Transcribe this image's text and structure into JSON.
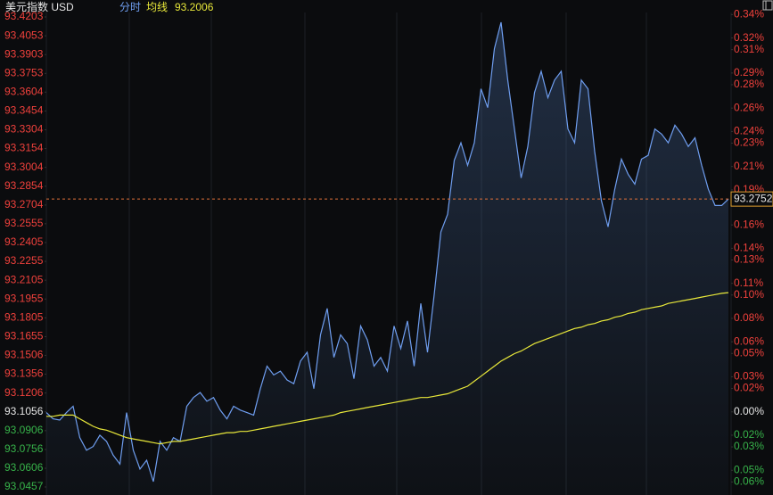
{
  "chart_data": {
    "type": "line",
    "title": "美元指数 USD",
    "ylim": [
      93.0457,
      93.4203
    ],
    "yticks": [
      93.4203,
      93.4053,
      93.3903,
      93.3753,
      93.3604,
      93.3454,
      93.3304,
      93.3154,
      93.3004,
      93.2854,
      93.2704,
      93.2555,
      93.2405,
      93.2255,
      93.2105,
      93.1955,
      93.1805,
      93.1655,
      93.1506,
      93.1356,
      93.1206,
      93.1056,
      93.0906,
      93.0756,
      93.0606,
      93.0457
    ],
    "y2lim": [
      -0.0643,
      0.338
    ],
    "y2ticks": [
      {
        "value": 0.34,
        "label": "0.34%"
      },
      {
        "value": 0.32,
        "label": "0.32%"
      },
      {
        "value": 0.31,
        "label": "0.31%"
      },
      {
        "value": 0.29,
        "label": "0.29%"
      },
      {
        "value": 0.28,
        "label": "0.28%"
      },
      {
        "value": 0.26,
        "label": "0.26%"
      },
      {
        "value": 0.24,
        "label": "0.24%"
      },
      {
        "value": 0.23,
        "label": "0.23%"
      },
      {
        "value": 0.21,
        "label": "0.21%"
      },
      {
        "value": 0.19,
        "label": "0.19%"
      },
      {
        "value": 0.18,
        "label": "0.18%"
      },
      {
        "value": 0.16,
        "label": "0.16%"
      },
      {
        "value": 0.14,
        "label": "0.14%"
      },
      {
        "value": 0.13,
        "label": "0.13%"
      },
      {
        "value": 0.11,
        "label": "0.11%"
      },
      {
        "value": 0.1,
        "label": "0.10%"
      },
      {
        "value": 0.08,
        "label": "0.08%"
      },
      {
        "value": 0.06,
        "label": "0.06%"
      },
      {
        "value": 0.05,
        "label": "0.05%"
      },
      {
        "value": 0.03,
        "label": "0.03%"
      },
      {
        "value": 0.02,
        "label": "0.02%"
      },
      {
        "value": 0,
        "label": "0.00%"
      },
      {
        "value": -0.02,
        "label": "0.02%"
      },
      {
        "value": -0.03,
        "label": "0.03%"
      },
      {
        "value": -0.05,
        "label": "0.05%"
      },
      {
        "value": -0.06,
        "label": "0.06%"
      }
    ],
    "up_color": "#f0413c",
    "down_color": "#37b34a",
    "flat_color": "#e6e6e6",
    "series": [
      {
        "name": "分时",
        "color": "#6f9ef0",
        "values": [
          93.105,
          93.1,
          93.099,
          93.105,
          93.11,
          93.085,
          93.075,
          93.078,
          93.087,
          93.082,
          93.071,
          93.064,
          93.105,
          93.075,
          93.06,
          93.067,
          93.05,
          93.082,
          93.075,
          93.085,
          93.082,
          93.11,
          93.117,
          93.121,
          93.114,
          93.117,
          93.107,
          93.1,
          93.11,
          93.107,
          93.105,
          93.103,
          93.124,
          93.142,
          93.135,
          93.138,
          93.131,
          93.128,
          93.146,
          93.153,
          93.124,
          93.167,
          93.188,
          93.149,
          93.167,
          93.16,
          93.132,
          93.174,
          93.163,
          93.142,
          93.149,
          93.138,
          93.174,
          93.156,
          93.178,
          93.142,
          93.192,
          93.153,
          93.199,
          93.249,
          93.263,
          93.306,
          93.32,
          93.302,
          93.32,
          93.363,
          93.348,
          93.395,
          93.416,
          93.37,
          93.331,
          93.292,
          93.317,
          93.36,
          93.377,
          93.356,
          93.37,
          93.377,
          93.331,
          93.32,
          93.37,
          93.363,
          93.313,
          93.274,
          93.253,
          93.283,
          93.307,
          93.295,
          93.287,
          93.307,
          93.31,
          93.331,
          93.327,
          93.32,
          93.334,
          93.327,
          93.317,
          93.324,
          93.302,
          93.283,
          93.27,
          93.27,
          93.2752
        ]
      },
      {
        "name": "均线",
        "color": "#e8e83a",
        "values": [
          93.102,
          93.102,
          93.103,
          93.103,
          93.103,
          93.1,
          93.097,
          93.094,
          93.092,
          93.091,
          93.089,
          93.087,
          93.085,
          93.084,
          93.083,
          93.082,
          93.081,
          93.08,
          93.081,
          93.082,
          93.082,
          93.083,
          93.084,
          93.085,
          93.086,
          93.087,
          93.088,
          93.089,
          93.089,
          93.09,
          93.09,
          93.091,
          93.092,
          93.093,
          93.094,
          93.095,
          93.096,
          93.097,
          93.098,
          93.099,
          93.1,
          93.101,
          93.102,
          93.103,
          93.105,
          93.106,
          93.107,
          93.108,
          93.109,
          93.11,
          93.111,
          93.112,
          93.113,
          93.114,
          93.115,
          93.116,
          93.117,
          93.117,
          93.118,
          93.119,
          93.12,
          93.122,
          93.124,
          93.126,
          93.13,
          93.134,
          93.138,
          93.142,
          93.146,
          93.149,
          93.152,
          93.154,
          93.157,
          93.16,
          93.162,
          93.164,
          93.166,
          93.168,
          93.17,
          93.172,
          93.173,
          93.175,
          93.176,
          93.178,
          93.179,
          93.181,
          93.182,
          93.184,
          93.185,
          93.187,
          93.188,
          93.189,
          93.19,
          93.192,
          93.193,
          93.194,
          93.195,
          93.196,
          93.197,
          93.198,
          93.199,
          93.2,
          93.2006
        ]
      }
    ]
  }
}
